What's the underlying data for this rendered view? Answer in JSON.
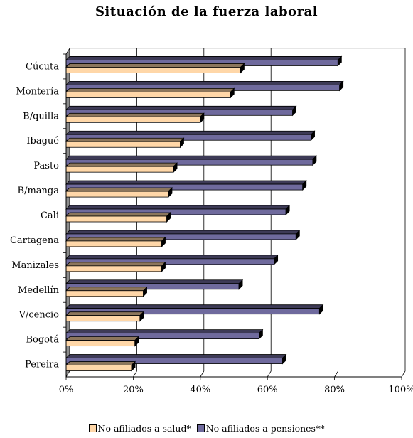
{
  "chart_data": {
    "type": "bar",
    "orientation": "horizontal",
    "title": "Situación de la fuerza laboral",
    "categories": [
      "Cúcuta",
      "Montería",
      "B/quilla",
      "Ibagué",
      "Pasto",
      "B/manga",
      "Cali",
      "Cartagena",
      "Manizales",
      "Medellín",
      "V/cencio",
      "Bogotá",
      "Pereira"
    ],
    "series": [
      {
        "name": "No afiliados a salud*",
        "color": "#ffd7a8",
        "values": [
          52,
          49,
          40,
          34,
          32,
          30.5,
          30,
          28.5,
          28.5,
          23,
          22,
          20.5,
          19.5
        ]
      },
      {
        "name": "No afiliados a pensiones**",
        "color": "#6f6a9d",
        "values": [
          81,
          81.5,
          67.5,
          73,
          73.5,
          70.5,
          65.5,
          68.5,
          62,
          51.5,
          75.5,
          57.5,
          64.5
        ]
      }
    ],
    "x_ticks": [
      "0%",
      "20%",
      "40%",
      "60%",
      "80%",
      "100%"
    ],
    "xlim": [
      0,
      100
    ],
    "grid": "vertical major lines",
    "legend_position": "bottom-center",
    "style": "3d-shaded"
  }
}
